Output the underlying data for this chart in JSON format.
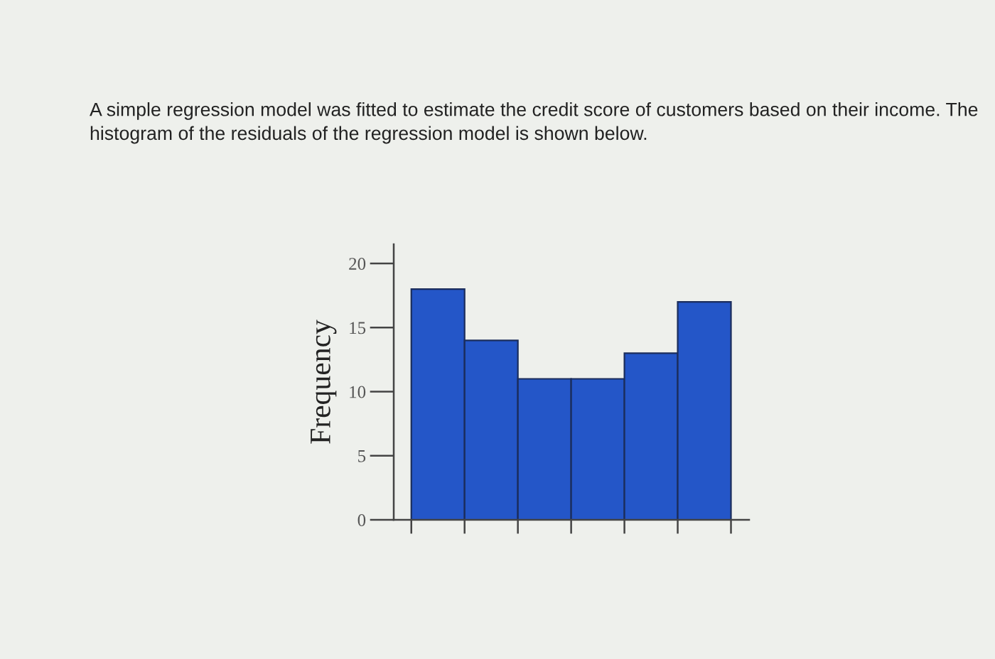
{
  "chart_data": {
    "type": "histogram",
    "title": "A simple regression model was fitted to estimate the credit score of customers based on their income. The histogram of the residuals of the regression model is shown below.",
    "ylabel": "Frequency",
    "categories": [
      null,
      null,
      null,
      null,
      null,
      null
    ],
    "values": [
      18,
      14,
      11,
      11,
      13,
      17
    ],
    "color": "#2456c8",
    "ylim": [
      0,
      21.5
    ],
    "yticks": [
      0,
      5,
      10,
      15,
      20
    ],
    "grid": false,
    "tick_labels": "y"
  }
}
